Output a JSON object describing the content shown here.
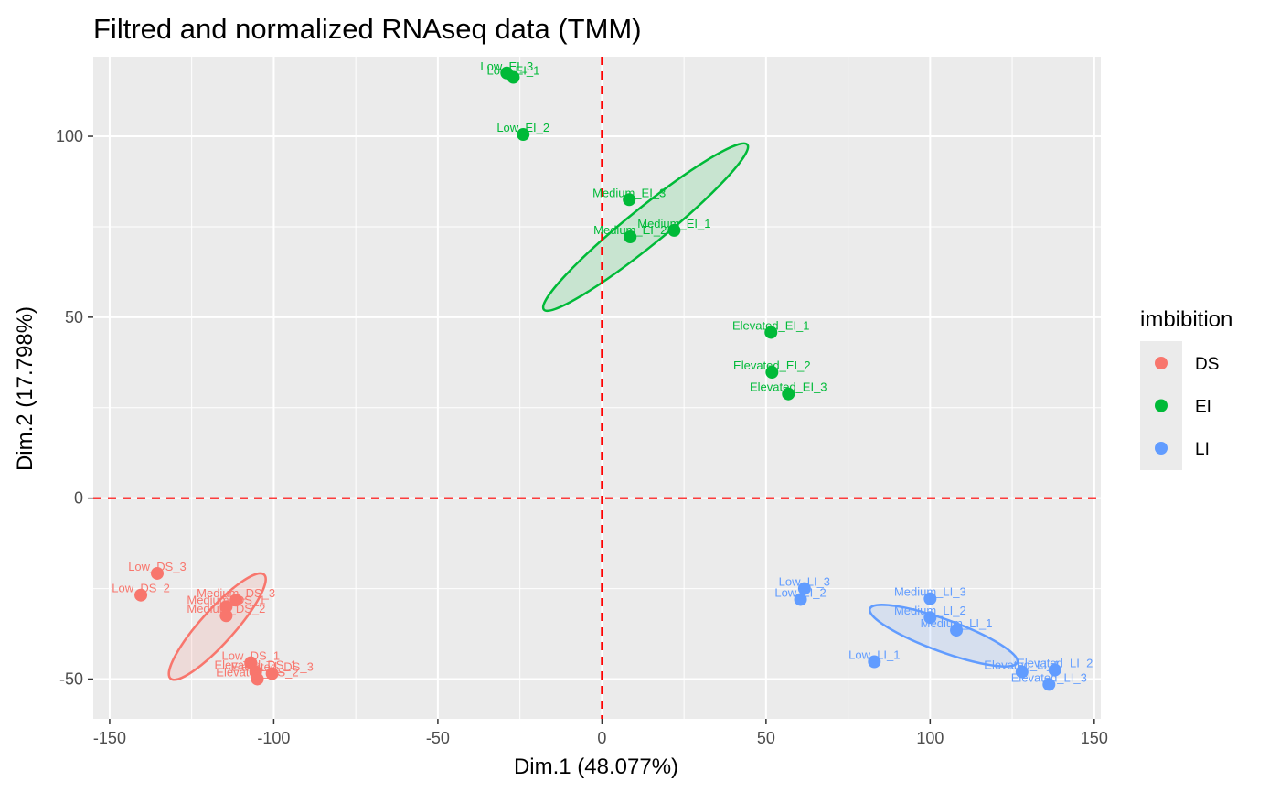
{
  "chart_data": {
    "type": "scatter",
    "title": "Filtred and normalized RNAseq data (TMM)",
    "xlabel": "Dim.1 (48.077%)",
    "ylabel": "Dim.2 (17.798%)",
    "xlim": [
      -155,
      152
    ],
    "ylim": [
      -61,
      122
    ],
    "xticks": [
      -150,
      -100,
      -50,
      0,
      50,
      100,
      150
    ],
    "yticks": [
      -50,
      0,
      50,
      100
    ],
    "xtick_labels": [
      "-150",
      "-100",
      "-50",
      "0",
      "50",
      "100",
      "150"
    ],
    "ytick_labels": [
      "-50",
      "0",
      "50",
      "100"
    ],
    "grid": true,
    "reference_lines": {
      "x": 0,
      "y": 0,
      "color": "#e41a1c",
      "style": "dashed"
    },
    "legend": {
      "title": "imbibition",
      "placement": "right",
      "entries": [
        {
          "name": "DS",
          "color": "#F8766D"
        },
        {
          "name": "EI",
          "color": "#00BA38"
        },
        {
          "name": "LI",
          "color": "#619CFF"
        }
      ]
    },
    "series": [
      {
        "name": "DS",
        "color": "#F8766D",
        "points": [
          {
            "label": "Low_DS_3",
            "x": -135.5,
            "y": -20.8
          },
          {
            "label": "Low_DS_2",
            "x": -140.5,
            "y": -26.8
          },
          {
            "label": "Medium_DS_3",
            "x": -111.5,
            "y": -28.2
          },
          {
            "label": "Medium_DS_1",
            "x": -114.5,
            "y": -30.0
          },
          {
            "label": "Medium_DS_2",
            "x": -114.5,
            "y": -32.5
          },
          {
            "label": "Low_DS_1",
            "x": -107.0,
            "y": -45.5
          },
          {
            "label": "Elevated_DS_1",
            "x": -105.5,
            "y": -48.0
          },
          {
            "label": "Elevated_DS_3",
            "x": -100.5,
            "y": -48.5
          },
          {
            "label": "Elevated_DS_2",
            "x": -105.0,
            "y": -50.0
          }
        ],
        "ellipse": {
          "cx": -117.2,
          "cy": -35.5,
          "rx": 21.3,
          "ry": 5.1,
          "angle": -48
        }
      },
      {
        "name": "EI",
        "color": "#00BA38",
        "points": [
          {
            "label": "Low_EI_3",
            "x": -29.0,
            "y": 117.5
          },
          {
            "label": "Low_EI_1",
            "x": -27.0,
            "y": 116.3
          },
          {
            "label": "Low_EI_2",
            "x": -24.0,
            "y": 100.5
          },
          {
            "label": "Medium_EI_3",
            "x": 8.3,
            "y": 82.5
          },
          {
            "label": "Medium_EI_1",
            "x": 22.0,
            "y": 74.0
          },
          {
            "label": "Medium_EI_2",
            "x": 8.6,
            "y": 72.2
          },
          {
            "label": "Elevated_EI_1",
            "x": 51.5,
            "y": 45.8
          },
          {
            "label": "Elevated_EI_2",
            "x": 51.8,
            "y": 34.8
          },
          {
            "label": "Elevated_EI_3",
            "x": 56.8,
            "y": 28.8
          }
        ],
        "ellipse": {
          "cx": 13.3,
          "cy": 74.9,
          "rx": 39.9,
          "ry": 5.6,
          "angle": -39
        }
      },
      {
        "name": "LI",
        "color": "#619CFF",
        "points": [
          {
            "label": "Low_LI_3",
            "x": 61.7,
            "y": -25.0
          },
          {
            "label": "Low_LI_2",
            "x": 60.5,
            "y": -28.0
          },
          {
            "label": "Medium_LI_3",
            "x": 100.0,
            "y": -27.8
          },
          {
            "label": "Medium_LI_2",
            "x": 100.0,
            "y": -33.0
          },
          {
            "label": "Medium_LI_1",
            "x": 108.0,
            "y": -36.5
          },
          {
            "label": "Low_LI_1",
            "x": 83.0,
            "y": -45.2
          },
          {
            "label": "Elevated_LI_1",
            "x": 128.0,
            "y": -48.0
          },
          {
            "label": "Elevated_LI_2",
            "x": 138.0,
            "y": -47.5
          },
          {
            "label": "Elevated_LI_3",
            "x": 136.2,
            "y": -51.5
          }
        ],
        "ellipse": {
          "cx": 104.1,
          "cy": -38.0,
          "rx": 23.9,
          "ry": 4.9,
          "angle": 20
        }
      }
    ]
  }
}
